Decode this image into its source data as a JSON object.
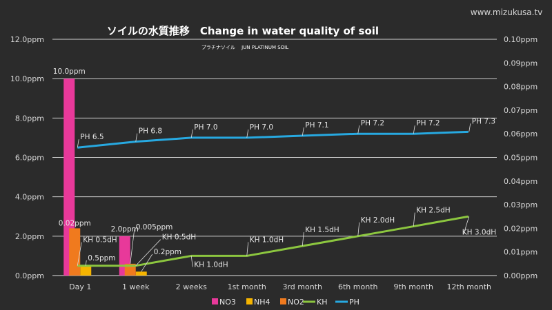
{
  "chart_data": {
    "type": "bar",
    "title": "ソイルの水質推移　Change in water quality of soil",
    "subtitle": "プラチナソイル　 JUN PLATINUM SOIL",
    "site_label": "www.mizukusa.tv",
    "categories": [
      "Day 1",
      "1 week",
      "2 weeks",
      "1st month",
      "3rd month",
      "6th month",
      "9th month",
      "12th month"
    ],
    "y_left": {
      "min": 0,
      "max": 12,
      "step": 2,
      "ticks": [
        "0.0ppm",
        "2.0ppm",
        "4.0ppm",
        "6.0ppm",
        "8.0ppm",
        "10.0ppm",
        "12.0ppm"
      ]
    },
    "y_right": {
      "min": 0,
      "max": 0.1,
      "step": 0.01,
      "ticks": [
        "0.00ppm",
        "0.01ppm",
        "0.02ppm",
        "0.03ppm",
        "0.04ppm",
        "0.05ppm",
        "0.06ppm",
        "0.07ppm",
        "0.08ppm",
        "0.09ppm",
        "0.10ppm"
      ]
    },
    "grid": true,
    "legend_position": "bottom",
    "series": [
      {
        "name": "NO3",
        "type": "bar",
        "axis": "left",
        "color": "#e8399a",
        "values": [
          10.0,
          2.0,
          null,
          null,
          null,
          null,
          null,
          null
        ],
        "labels": [
          "10.0ppm",
          "2.0ppm",
          "",
          "",
          "",
          "",
          "",
          ""
        ]
      },
      {
        "name": "NH4",
        "type": "bar",
        "axis": "left",
        "color": "#f5b400",
        "values": [
          0.5,
          0.2,
          null,
          null,
          null,
          null,
          null,
          null
        ],
        "labels": [
          "0.5ppm",
          "0.2ppm",
          "",
          "",
          "",
          "",
          "",
          ""
        ]
      },
      {
        "name": "NO2",
        "type": "bar",
        "axis": "right",
        "color": "#f07a1e",
        "values": [
          0.02,
          0.005,
          null,
          null,
          null,
          null,
          null,
          null
        ],
        "labels": [
          "0.02ppm",
          "0.005ppm",
          "",
          "",
          "",
          "",
          "",
          ""
        ]
      },
      {
        "name": "KH",
        "type": "line",
        "axis": "left",
        "color": "#8cc63f",
        "values": [
          0.5,
          0.5,
          1.0,
          1.0,
          1.5,
          2.0,
          2.5,
          3.0
        ],
        "labels": [
          "KH 0.5dH",
          "KH 0.5dH",
          "KH 1.0dH",
          "KH 1.0dH",
          "KH 1.5dH",
          "KH 2.0dH",
          "KH 2.5dH",
          "KH 3.0dH"
        ]
      },
      {
        "name": "PH",
        "type": "line",
        "axis": "left",
        "color": "#27a9e1",
        "values": [
          6.5,
          6.8,
          7.0,
          7.0,
          7.1,
          7.2,
          7.2,
          7.3
        ],
        "labels": [
          "PH 6.5",
          "PH 6.8",
          "PH 7.0",
          "PH 7.0",
          "PH 7.1",
          "PH 7.2",
          "PH 7.2",
          "PH 7.3"
        ]
      }
    ]
  }
}
